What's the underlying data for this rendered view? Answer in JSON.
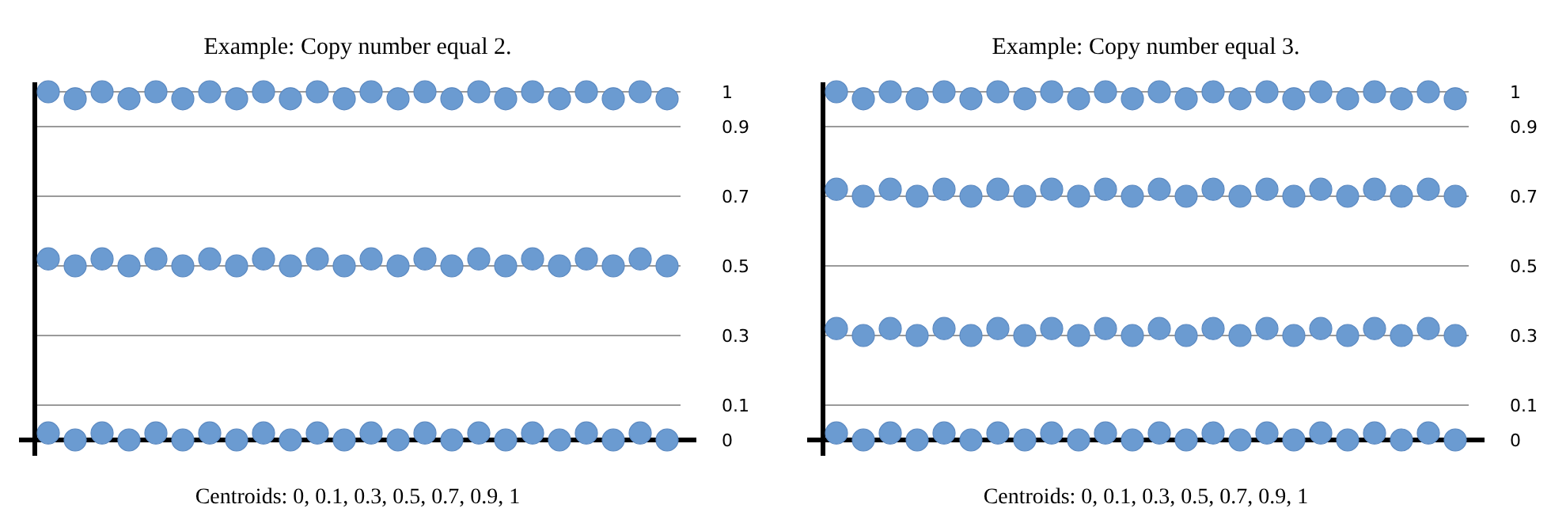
{
  "chart_data": [
    {
      "type": "scatter",
      "title": "Example: Copy number equal 2.",
      "xlabel": "Centroids: 0, 0.1, 0.3, 0.5, 0.7, 0.9, 1",
      "categories": [
        null,
        null,
        null,
        null,
        null,
        null,
        null,
        null,
        null,
        null,
        null,
        null,
        null,
        null,
        null,
        null,
        null,
        null,
        null,
        null,
        null,
        null,
        null,
        null
      ],
      "series": [
        {
          "color": "#6b9bd1",
          "values": [
            1,
            0.98,
            1,
            0.98,
            1,
            0.98,
            1,
            0.98,
            1,
            0.98,
            1,
            0.98,
            1,
            0.98,
            1,
            0.98,
            1,
            0.98,
            1,
            0.98,
            1,
            0.98,
            1,
            0.98
          ]
        },
        {
          "color": "#6b9bd1",
          "values": [
            0.52,
            0.5,
            0.52,
            0.5,
            0.52,
            0.5,
            0.52,
            0.5,
            0.52,
            0.5,
            0.52,
            0.5,
            0.52,
            0.5,
            0.52,
            0.5,
            0.52,
            0.5,
            0.52,
            0.5,
            0.52,
            0.5,
            0.52,
            0.5
          ]
        },
        {
          "color": "#6b9bd1",
          "values": [
            0.02,
            0,
            0.02,
            0,
            0.02,
            0,
            0.02,
            0,
            0.02,
            0,
            0.02,
            0,
            0.02,
            0,
            0.02,
            0,
            0.02,
            0,
            0.02,
            0,
            0.02,
            0,
            0.02,
            0
          ]
        }
      ],
      "ylim": [
        0,
        1
      ],
      "yticks": [
        0,
        0.1,
        0.3,
        0.5,
        0.7,
        0.9,
        1
      ],
      "grid": "y",
      "marker": "circle",
      "tick_labels": "y"
    },
    {
      "type": "scatter",
      "title": "Example: Copy number equal 3.",
      "xlabel": "Centroids: 0, 0.1, 0.3, 0.5, 0.7, 0.9, 1",
      "categories": [
        null,
        null,
        null,
        null,
        null,
        null,
        null,
        null,
        null,
        null,
        null,
        null,
        null,
        null,
        null,
        null,
        null,
        null,
        null,
        null,
        null,
        null,
        null,
        null
      ],
      "series": [
        {
          "color": "#6b9bd1",
          "values": [
            1,
            0.98,
            1,
            0.98,
            1,
            0.98,
            1,
            0.98,
            1,
            0.98,
            1,
            0.98,
            1,
            0.98,
            1,
            0.98,
            1,
            0.98,
            1,
            0.98,
            1,
            0.98,
            1,
            0.98
          ]
        },
        {
          "color": "#6b9bd1",
          "values": [
            0.72,
            0.7,
            0.72,
            0.7,
            0.72,
            0.7,
            0.72,
            0.7,
            0.72,
            0.7,
            0.72,
            0.7,
            0.72,
            0.7,
            0.72,
            0.7,
            0.72,
            0.7,
            0.72,
            0.7,
            0.72,
            0.7,
            0.72,
            0.7
          ]
        },
        {
          "color": "#6b9bd1",
          "values": [
            0.32,
            0.3,
            0.32,
            0.3,
            0.32,
            0.3,
            0.32,
            0.3,
            0.32,
            0.3,
            0.32,
            0.3,
            0.32,
            0.3,
            0.32,
            0.3,
            0.32,
            0.3,
            0.32,
            0.3,
            0.32,
            0.3,
            0.32,
            0.3
          ]
        },
        {
          "color": "#6b9bd1",
          "values": [
            0.02,
            0,
            0.02,
            0,
            0.02,
            0,
            0.02,
            0,
            0.02,
            0,
            0.02,
            0,
            0.02,
            0,
            0.02,
            0,
            0.02,
            0,
            0.02,
            0,
            0.02,
            0,
            0.02,
            0
          ]
        }
      ],
      "ylim": [
        0,
        1
      ],
      "yticks": [
        0,
        0.1,
        0.3,
        0.5,
        0.7,
        0.9,
        1
      ],
      "grid": "y",
      "marker": "circle",
      "tick_labels": "y"
    }
  ]
}
